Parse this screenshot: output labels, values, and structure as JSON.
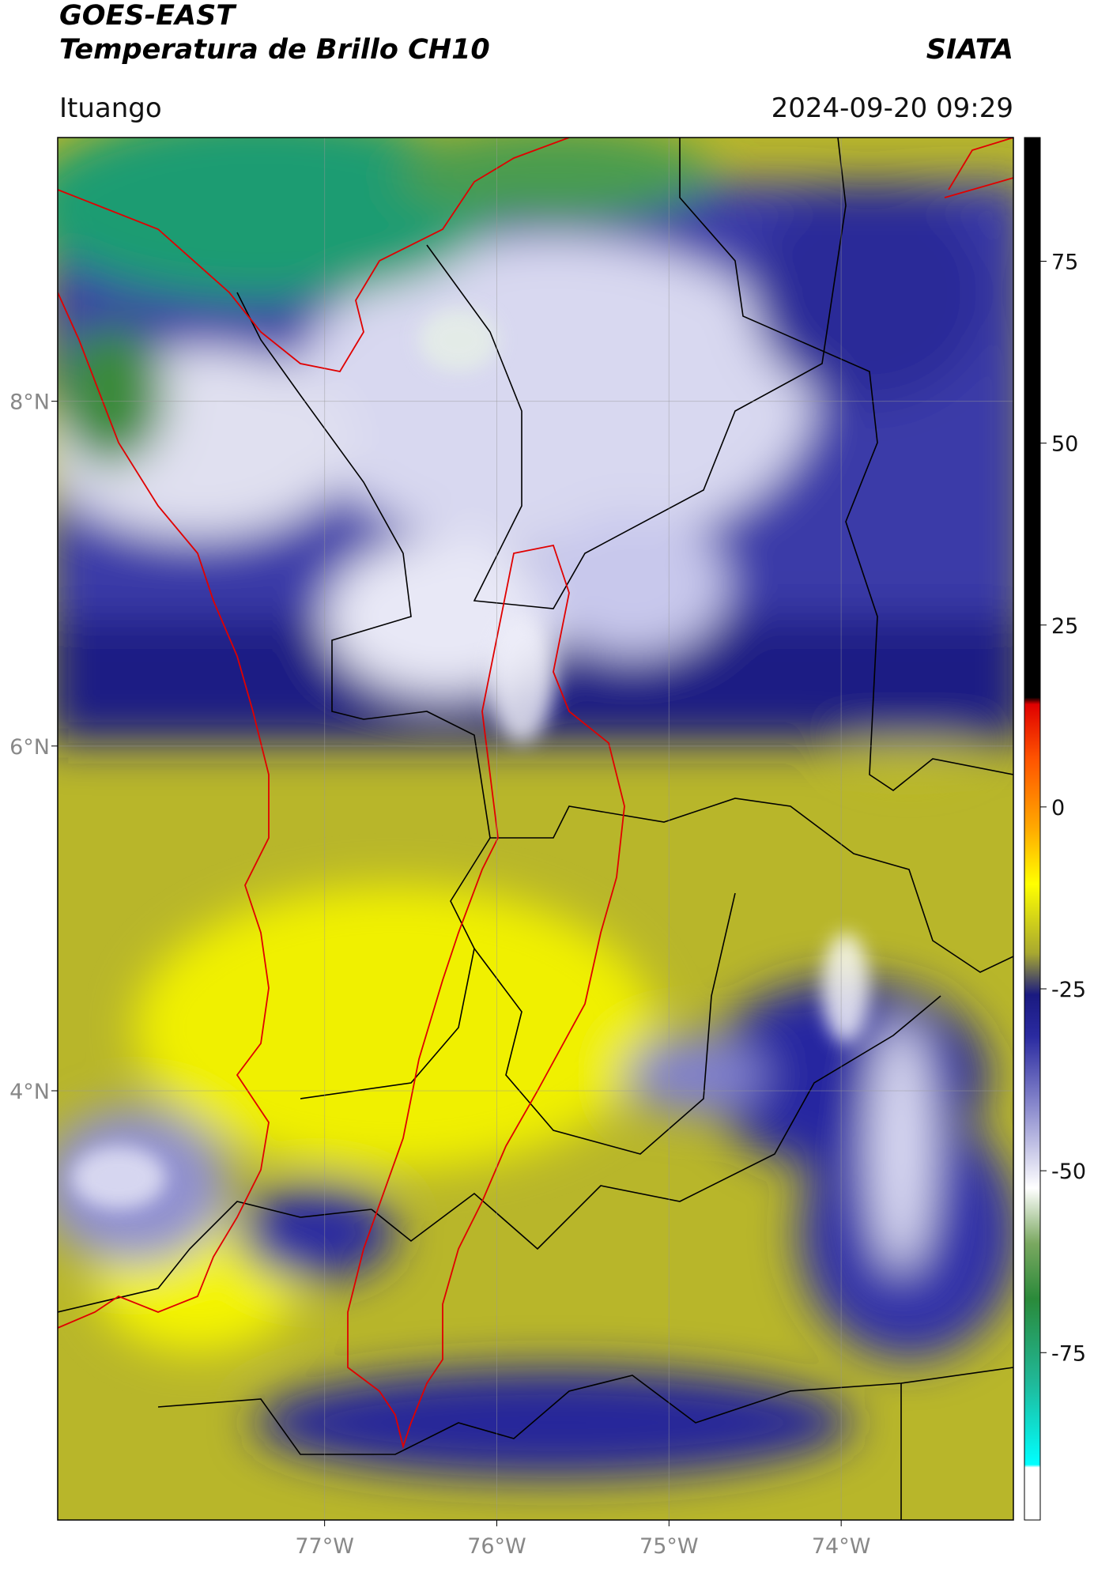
{
  "header": {
    "title": "GOES-EAST",
    "subtitle": "Temperatura de Brillo CH10",
    "region": "Ituango",
    "source": "SIATA",
    "datetime": "2024-09-20 09:29"
  },
  "map": {
    "xlim": [
      -78.55,
      -73.0
    ],
    "ylim": [
      1.51,
      9.53
    ],
    "xticks": [
      {
        "value": -77,
        "label": "77°W"
      },
      {
        "value": -76,
        "label": "76°W"
      },
      {
        "value": -75,
        "label": "75°W"
      },
      {
        "value": -74,
        "label": "74°W"
      }
    ],
    "yticks": [
      {
        "value": 8,
        "label": "8°N"
      },
      {
        "value": 6,
        "label": "6°N"
      },
      {
        "value": 4,
        "label": "4°N"
      }
    ],
    "grid": true
  },
  "colorbar": {
    "lim": [
      -98,
      92
    ],
    "ticks": [
      75,
      50,
      25,
      0,
      -25,
      -50,
      -75
    ]
  }
}
